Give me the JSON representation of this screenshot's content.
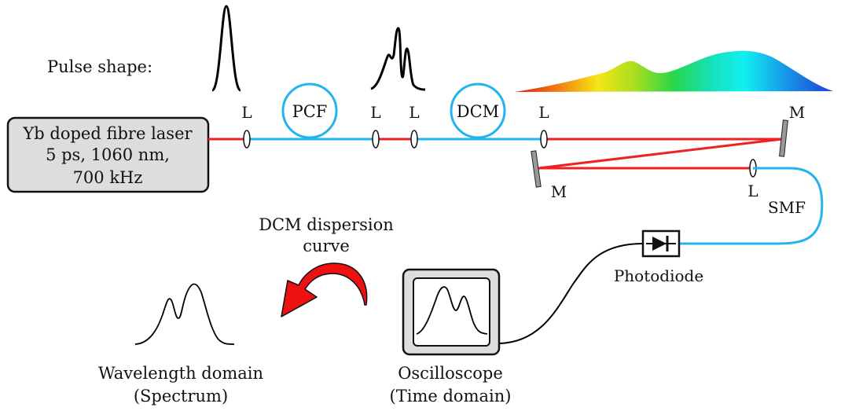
{
  "pulse_shape_label": "Pulse shape:",
  "laser": {
    "line1": "Yb doped fibre laser",
    "line2": "5 ps, 1060 nm,",
    "line3": "700 kHz"
  },
  "lens_label": "L",
  "mirror_label": "M",
  "pcf_label": "PCF",
  "dcm_label": "DCM",
  "smf_label": "SMF",
  "photodiode_label": "Photodiode",
  "dcm_dispersion": {
    "line1": "DCM dispersion",
    "line2": "curve"
  },
  "wavelength": {
    "line1": "Wavelength domain",
    "line2": "(Spectrum)"
  },
  "oscilloscope": {
    "line1": "Oscilloscope",
    "line2": "(Time domain)"
  },
  "colors": {
    "red_beam": "#ee2222",
    "blue_fibre": "#22b4ee",
    "laser_box_fill": "#dddddd",
    "arrow": "#ee1111"
  }
}
